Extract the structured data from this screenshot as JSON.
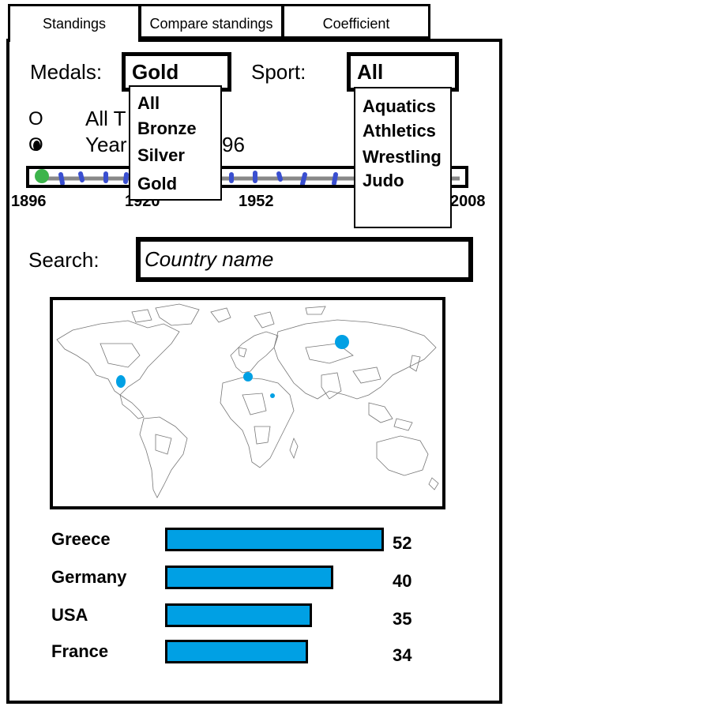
{
  "tabs": [
    {
      "label": "Standings"
    },
    {
      "label": "Compare standings"
    },
    {
      "label": "Coefficient"
    }
  ],
  "filters": {
    "medals_label": "Medals:",
    "medals_selected": "Gold",
    "medals_options": [
      "All",
      "Bronze",
      "Silver",
      "Gold"
    ],
    "sport_label": "Sport:",
    "sport_selected": "All",
    "sport_options": [
      "Aquatics",
      "Athletics",
      "Wrestling",
      "Judo"
    ]
  },
  "time": {
    "radio_symbol_1": "O",
    "radio_label_1": "All T",
    "radio_symbol_2": "O",
    "radio_label_2": "Year",
    "year_fragment": "96",
    "ticks": [
      "1896",
      "1920",
      "1952",
      "2008"
    ]
  },
  "search": {
    "label": "Search:",
    "placeholder": "Country name"
  },
  "standings": [
    {
      "country": "Greece",
      "value": 52
    },
    {
      "country": "Germany",
      "value": 40
    },
    {
      "country": "USA",
      "value": 35
    },
    {
      "country": "France",
      "value": 34
    }
  ],
  "colors": {
    "bar": "#00a0e4",
    "map_marker": "#00a0e4",
    "slider_handle": "#3cb44b",
    "slider_ticks": "#3a4fd0"
  }
}
